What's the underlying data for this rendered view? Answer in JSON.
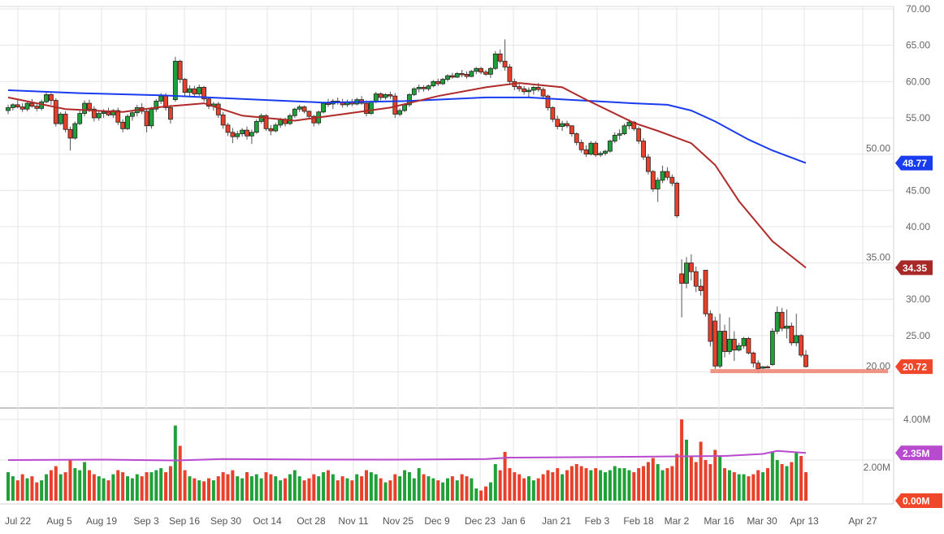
{
  "chart_data": {
    "type": "candlestick",
    "price_axis": {
      "ylim": [
        15,
        70
      ],
      "ticks": [
        "70.00",
        "65.00",
        "60.00",
        "55.00",
        "50.00",
        "45.00",
        "40.00",
        "35.00",
        "30.00",
        "25.00",
        "20.00"
      ],
      "tick_values": [
        70,
        65,
        60,
        55,
        50,
        45,
        40,
        35,
        30,
        25,
        20
      ]
    },
    "volume_axis": {
      "ylim": [
        0,
        4.2
      ],
      "ticks": [
        "4.00M",
        "2.00M"
      ],
      "tick_values": [
        4,
        2
      ]
    },
    "x_ticks": [
      "Jul 22",
      "Aug 5",
      "Aug 19",
      "Sep 3",
      "Sep 16",
      "Sep 30",
      "Oct 14",
      "Oct 28",
      "Nov 11",
      "Nov 25",
      "Dec 9",
      "Dec 23",
      "Jan 6",
      "Jan 21",
      "Feb 3",
      "Feb 18",
      "Mar 2",
      "Mar 16",
      "Mar 30",
      "Apr 13",
      "Apr 27"
    ],
    "grid": true,
    "colors": {
      "up": "#1fa13a",
      "down": "#e8402a",
      "ma_long": "#1a3cf0",
      "ma_short": "#b02a2a",
      "volume_ma": "#b84ad0",
      "support": "#f08878"
    },
    "ohlc": [
      [
        56,
        56.8,
        55.5,
        56.4
      ],
      [
        56.4,
        57,
        56,
        56.8
      ],
      [
        56.8,
        57.5,
        56.3,
        56.5
      ],
      [
        56.5,
        57,
        55.8,
        56.2
      ],
      [
        56.2,
        57.2,
        55.9,
        57
      ],
      [
        57,
        57.6,
        56.4,
        56.6
      ],
      [
        56.6,
        57.1,
        55.9,
        56.3
      ],
      [
        56.3,
        57.5,
        56,
        57.2
      ],
      [
        57.2,
        58.6,
        57,
        58.2
      ],
      [
        58.2,
        58.4,
        56.8,
        57.4
      ],
      [
        57.4,
        57.7,
        53.8,
        54.2
      ],
      [
        54.2,
        55.8,
        54,
        55.5
      ],
      [
        55.5,
        55.9,
        53,
        53.4
      ],
      [
        53.4,
        53.8,
        50.5,
        52.2
      ],
      [
        52.2,
        54.5,
        52,
        54.2
      ],
      [
        54.2,
        56,
        54,
        55.6
      ],
      [
        55.6,
        57.4,
        55.2,
        57
      ],
      [
        57,
        57.5,
        55.8,
        56.2
      ],
      [
        56.2,
        56.6,
        54.5,
        55
      ],
      [
        55,
        56,
        54.6,
        55.6
      ],
      [
        55.6,
        56.2,
        55,
        55.8
      ],
      [
        55.8,
        56.4,
        55.2,
        55.4
      ],
      [
        55.4,
        56.2,
        55,
        56
      ],
      [
        56,
        56.4,
        54,
        54.4
      ],
      [
        54.4,
        54.8,
        53,
        53.5
      ],
      [
        53.5,
        55.5,
        53.3,
        55.2
      ],
      [
        55.2,
        56,
        54.6,
        55.7
      ],
      [
        55.7,
        56.8,
        55.2,
        56.4
      ],
      [
        56.4,
        57,
        55.5,
        55.9
      ],
      [
        55.9,
        56.2,
        53,
        53.9
      ],
      [
        53.9,
        56.5,
        53.5,
        56.2
      ],
      [
        56.2,
        57.6,
        55.8,
        57.3
      ],
      [
        57.3,
        58.4,
        56.9,
        58
      ],
      [
        58,
        58.4,
        56,
        56.4
      ],
      [
        56.4,
        56.8,
        54.2,
        54.8
      ],
      [
        57.5,
        63.4,
        57.2,
        62.8
      ],
      [
        62.8,
        63,
        59.8,
        60.3
      ],
      [
        60.3,
        60.5,
        58,
        58.5
      ],
      [
        58.5,
        59.5,
        58,
        59
      ],
      [
        59,
        59.4,
        57.8,
        58.3
      ],
      [
        58.3,
        59.6,
        58,
        59.2
      ],
      [
        59.2,
        59.4,
        57.2,
        57.6
      ],
      [
        57.6,
        57.8,
        56.2,
        56.6
      ],
      [
        56.6,
        57.2,
        56,
        56.9
      ],
      [
        56.9,
        57.2,
        55,
        55.4
      ],
      [
        55.4,
        55.8,
        53.5,
        54
      ],
      [
        54,
        54.3,
        52.5,
        53
      ],
      [
        53,
        53.6,
        51.5,
        52.4
      ],
      [
        52.4,
        53.2,
        52,
        52.8
      ],
      [
        52.8,
        53.6,
        52.4,
        53.3
      ],
      [
        53.3,
        53.8,
        52,
        52.5
      ],
      [
        52.5,
        53.4,
        51.4,
        53
      ],
      [
        53,
        54.8,
        52.8,
        54.5
      ],
      [
        54.5,
        55.6,
        54.2,
        55.3
      ],
      [
        55.3,
        55.5,
        53.2,
        53.5
      ],
      [
        53.5,
        54,
        52.6,
        53.2
      ],
      [
        53.2,
        54.3,
        53,
        54
      ],
      [
        54,
        55,
        53.6,
        54.8
      ],
      [
        54.8,
        55,
        53.8,
        54.2
      ],
      [
        54.2,
        55.6,
        54,
        55.3
      ],
      [
        55.3,
        56.4,
        55,
        56.2
      ],
      [
        56.2,
        56.8,
        55.8,
        56.5
      ],
      [
        56.5,
        56.7,
        55.6,
        55.9
      ],
      [
        55.9,
        56,
        54.8,
        55.2
      ],
      [
        55.2,
        55.4,
        53.8,
        54.3
      ],
      [
        54.3,
        56,
        54,
        55.8
      ],
      [
        55.8,
        57.2,
        55.6,
        57
      ],
      [
        57,
        57.6,
        56.5,
        56.9
      ],
      [
        56.9,
        57.6,
        56.2,
        57.3
      ],
      [
        57.3,
        57.8,
        56.8,
        57.1
      ],
      [
        57.1,
        57.6,
        56.4,
        56.8
      ],
      [
        56.8,
        57.5,
        56.5,
        57.2
      ],
      [
        57.2,
        57.6,
        56.6,
        56.9
      ],
      [
        56.9,
        57.8,
        56.7,
        57.5
      ],
      [
        57.5,
        58,
        56.8,
        57
      ],
      [
        57,
        57.4,
        55.2,
        55.6
      ],
      [
        55.6,
        57.4,
        55.4,
        57.2
      ],
      [
        57.2,
        58.6,
        57,
        58.3
      ],
      [
        58.3,
        58.5,
        57.4,
        57.8
      ],
      [
        57.8,
        58.4,
        57.5,
        58.2
      ],
      [
        58.2,
        58.6,
        57.6,
        58
      ],
      [
        58,
        58.4,
        55,
        55.5
      ],
      [
        55.5,
        56.3,
        55.2,
        56
      ],
      [
        56,
        57,
        55.8,
        56.8
      ],
      [
        56.8,
        58.4,
        56.5,
        58.2
      ],
      [
        58.2,
        59.2,
        58,
        59
      ],
      [
        59,
        59.6,
        58.5,
        59.2
      ],
      [
        59.2,
        59.5,
        58.6,
        59
      ],
      [
        59,
        59.6,
        58.7,
        59.4
      ],
      [
        59.4,
        60.2,
        59.2,
        60
      ],
      [
        60,
        60.4,
        59.4,
        59.7
      ],
      [
        59.7,
        60.5,
        59.5,
        60.3
      ],
      [
        60.3,
        61,
        60,
        60.8
      ],
      [
        60.8,
        61.2,
        60.4,
        60.6
      ],
      [
        60.6,
        61.3,
        60.5,
        61.1
      ],
      [
        61.1,
        61.6,
        60.6,
        61
      ],
      [
        61,
        61.4,
        60.4,
        60.7
      ],
      [
        60.7,
        61.6,
        60.6,
        61.4
      ],
      [
        61.4,
        62,
        61,
        61.8
      ],
      [
        61.8,
        62,
        61,
        61.3
      ],
      [
        61.3,
        61.6,
        60.8,
        61
      ],
      [
        61,
        62,
        60.5,
        61.8
      ],
      [
        61.8,
        64.2,
        61.6,
        63.8
      ],
      [
        63.8,
        64.4,
        62.5,
        62.8
      ],
      [
        62.8,
        65.8,
        61.5,
        62
      ],
      [
        62,
        62.4,
        59.5,
        60
      ],
      [
        60,
        60.4,
        58.8,
        59.3
      ],
      [
        59.3,
        59.8,
        58.6,
        59
      ],
      [
        59,
        59.4,
        58.2,
        58.6
      ],
      [
        58.6,
        59.2,
        57.8,
        58.8
      ],
      [
        58.8,
        59.4,
        58.2,
        59.2
      ],
      [
        59.2,
        59.8,
        58.6,
        58.9
      ],
      [
        58.9,
        59.2,
        57.6,
        58
      ],
      [
        58,
        58.2,
        56,
        56.4
      ],
      [
        56.4,
        56.6,
        54.4,
        54.8
      ],
      [
        54.8,
        55.3,
        53.4,
        53.8
      ],
      [
        53.8,
        54.6,
        53.2,
        54.2
      ],
      [
        54.2,
        54.6,
        53.6,
        53.9
      ],
      [
        53.9,
        54,
        52.4,
        52.8
      ],
      [
        52.8,
        53,
        51.2,
        51.6
      ],
      [
        51.6,
        52,
        50.2,
        50.6
      ],
      [
        50.6,
        51.2,
        49.6,
        50
      ],
      [
        50,
        51.8,
        49.8,
        51.5
      ],
      [
        51.5,
        51.8,
        49.6,
        49.9
      ],
      [
        49.9,
        50.4,
        49.6,
        50.1
      ],
      [
        50.1,
        50.6,
        49.8,
        50.4
      ],
      [
        50.4,
        52,
        50.2,
        51.8
      ],
      [
        51.8,
        53,
        51.5,
        52.6
      ],
      [
        52.6,
        53.4,
        52,
        52.8
      ],
      [
        52.8,
        54.2,
        52.6,
        53.9
      ],
      [
        53.9,
        54.8,
        53.4,
        54.4
      ],
      [
        54.4,
        54.6,
        53.2,
        53.5
      ],
      [
        53.5,
        53.8,
        51.4,
        51.8
      ],
      [
        51.8,
        52.2,
        49.2,
        49.6
      ],
      [
        49.6,
        50,
        47.2,
        47.6
      ],
      [
        47.6,
        47.8,
        44.8,
        45.2
      ],
      [
        45.2,
        46.8,
        43.4,
        46.4
      ],
      [
        46.4,
        48.4,
        46,
        47.6
      ],
      [
        47.6,
        48.2,
        46.4,
        46.8
      ],
      [
        46.8,
        47.2,
        45.6,
        46
      ],
      [
        46,
        46.2,
        41.2,
        41.5
      ],
      [
        33.5,
        35.5,
        27.5,
        32.2
      ],
      [
        32.2,
        35.8,
        31.5,
        35
      ],
      [
        35,
        36.2,
        32.6,
        33.8
      ],
      [
        33.8,
        34.5,
        31,
        31.8
      ],
      [
        31.8,
        32.8,
        30.5,
        31.2
      ],
      [
        34,
        34,
        27.6,
        28
      ],
      [
        28,
        28.5,
        23.5,
        24.2
      ],
      [
        27,
        27.6,
        20.4,
        20.8
      ],
      [
        20.8,
        28,
        20.5,
        25.6
      ],
      [
        25.6,
        26.5,
        22,
        22.8
      ],
      [
        22.8,
        27.5,
        22.4,
        24.5
      ],
      [
        24.5,
        25.6,
        21.5,
        23
      ],
      [
        23,
        24,
        22.8,
        23.6
      ],
      [
        23.6,
        24.8,
        23.2,
        24.6
      ],
      [
        24.6,
        24.8,
        22.4,
        22.6
      ],
      [
        22.6,
        22.8,
        20.6,
        21.2
      ],
      [
        21.2,
        21.6,
        19.8,
        20.4
      ],
      [
        20.5,
        20.8,
        20.4,
        20.7
      ],
      [
        20.7,
        20.9,
        20.5,
        20.6
      ],
      [
        21,
        26,
        20.8,
        25.6
      ],
      [
        25.6,
        29,
        25.2,
        28.2
      ],
      [
        28.2,
        28.8,
        25.6,
        26
      ],
      [
        26,
        28.6,
        24.6,
        26.3
      ],
      [
        26.3,
        26.8,
        23.6,
        24
      ],
      [
        24,
        28,
        23.5,
        25
      ],
      [
        25,
        25.2,
        22,
        22.3
      ],
      [
        22.3,
        23,
        20.6,
        20.72
      ]
    ],
    "volume_millions": [
      1.4,
      1.2,
      1.0,
      1.3,
      1.1,
      1.2,
      0.9,
      1.0,
      1.3,
      1.5,
      1.7,
      1.3,
      1.4,
      2.0,
      1.6,
      1.5,
      1.9,
      1.5,
      1.3,
      1.2,
      1.1,
      1.0,
      1.3,
      1.5,
      1.4,
      1.2,
      1.1,
      1.3,
      1.2,
      1.4,
      1.4,
      1.5,
      1.6,
      1.4,
      1.7,
      3.7,
      2.7,
      1.5,
      1.2,
      1.1,
      1.0,
      0.95,
      1.1,
      1.0,
      1.2,
      1.4,
      1.3,
      1.5,
      1.2,
      1.1,
      1.4,
      1.2,
      1.3,
      1.1,
      1.4,
      1.3,
      1.2,
      1.0,
      1.1,
      1.3,
      1.5,
      1.2,
      1.0,
      1.1,
      1.3,
      1.2,
      1.4,
      1.5,
      1.3,
      1.0,
      1.2,
      1.1,
      1.0,
      1.3,
      1.2,
      1.5,
      1.4,
      1.3,
      1.1,
      0.9,
      1.0,
      1.3,
      1.2,
      1.5,
      1.4,
      1.1,
      1.6,
      1.3,
      1.2,
      1.1,
      1.0,
      0.9,
      1.1,
      1.2,
      1.0,
      1.3,
      1.2,
      1.1,
      0.6,
      0.5,
      0.7,
      0.9,
      1.8,
      1.5,
      2.4,
      1.6,
      1.4,
      1.3,
      1.1,
      1.2,
      1.0,
      1.1,
      1.3,
      1.5,
      1.4,
      1.6,
      1.3,
      1.5,
      1.7,
      1.8,
      1.7,
      1.6,
      1.5,
      1.6,
      1.5,
      1.4,
      1.5,
      1.7,
      1.6,
      1.6,
      1.5,
      1.4,
      1.6,
      1.7,
      1.9,
      2.1,
      1.8,
      1.5,
      1.6,
      1.7,
      2.3,
      4.0,
      3.0,
      2.2,
      1.9,
      2.9,
      2.0,
      1.8,
      2.5,
      2.2,
      1.6,
      1.5,
      1.4,
      1.3,
      1.3,
      1.2,
      1.3,
      1.5,
      1.4,
      1.6,
      2.4,
      2.0,
      1.8,
      1.7,
      1.9,
      2.4,
      2.2,
      1.4
    ],
    "ma_long": [
      [
        0,
        58.8
      ],
      [
        15,
        58.4
      ],
      [
        32,
        58.1
      ],
      [
        49,
        57.6
      ],
      [
        66,
        57.1
      ],
      [
        83,
        57.3
      ],
      [
        100,
        57.8
      ],
      [
        109,
        57.8
      ],
      [
        117,
        57.5
      ],
      [
        131,
        57
      ],
      [
        138,
        56.8
      ],
      [
        143,
        56
      ],
      [
        148,
        54.5
      ],
      [
        155,
        52
      ],
      [
        160,
        50.5
      ],
      [
        167,
        48.77
      ]
    ],
    "ma_short": [
      [
        0,
        57.8
      ],
      [
        12,
        56.2
      ],
      [
        24,
        55.8
      ],
      [
        32,
        56.5
      ],
      [
        41,
        57
      ],
      [
        49,
        55.3
      ],
      [
        60,
        54.6
      ],
      [
        70,
        55.5
      ],
      [
        80,
        56.4
      ],
      [
        90,
        58
      ],
      [
        100,
        59.2
      ],
      [
        107,
        59.8
      ],
      [
        116,
        59.2
      ],
      [
        121,
        57.5
      ],
      [
        131,
        54.3
      ],
      [
        136,
        53.2
      ],
      [
        143,
        51.5
      ],
      [
        148,
        48.5
      ],
      [
        153,
        43.5
      ],
      [
        160,
        38
      ],
      [
        167,
        34.35
      ]
    ],
    "volume_ma": [
      [
        0,
        2.0
      ],
      [
        20,
        2.02
      ],
      [
        35,
        1.98
      ],
      [
        45,
        2.05
      ],
      [
        60,
        2.03
      ],
      [
        80,
        2.02
      ],
      [
        100,
        2.05
      ],
      [
        105,
        2.12
      ],
      [
        125,
        2.15
      ],
      [
        140,
        2.18
      ],
      [
        150,
        2.2
      ],
      [
        158,
        2.3
      ],
      [
        161,
        2.45
      ],
      [
        167,
        2.35
      ]
    ],
    "support_level": 20.1,
    "labels": {
      "ma_long": "48.77",
      "ma_short": "34.35",
      "last_price": "20.72",
      "volume_ma": "2.35M",
      "volume_zero": "0.00M"
    }
  }
}
